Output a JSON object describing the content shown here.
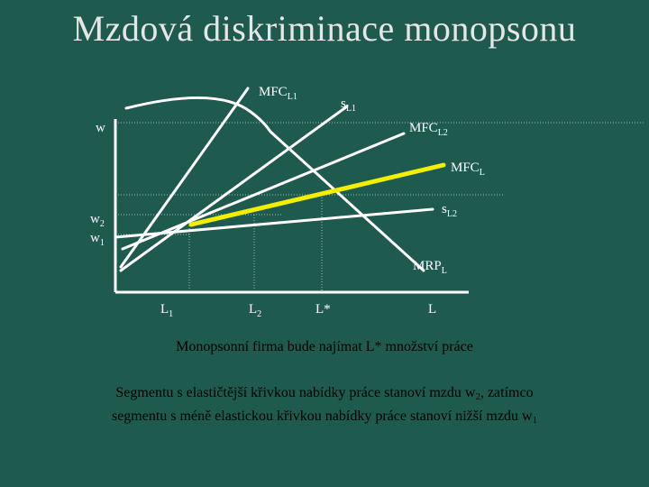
{
  "title": "Mzdová diskriminace monopsonu",
  "colors": {
    "background": "#1f5a4f",
    "curves": "#ffffff",
    "highlight": "#f2ef00",
    "text": "#000000"
  },
  "diagram": {
    "y_axis_labels": {
      "w": "w",
      "w2_main": "w",
      "w2_sub": "2",
      "w1_main": "w",
      "w1_sub": "1"
    },
    "x_axis_labels": {
      "L1_main": "L",
      "L1_sub": "1",
      "L2_main": "L",
      "L2_sub": "2",
      "Lstar": "L*",
      "L": "L"
    },
    "curve_labels": {
      "MFC_L1_main": "MFC",
      "MFC_L1_sub": "L1",
      "s_L1_main": "s",
      "s_L1_sub": "L1",
      "MFC_L2_main": "MFC",
      "MFC_L2_sub": "L2",
      "MFC_L_main": "MFC",
      "MFC_L_sub": "L",
      "s_L2_main": "s",
      "s_L2_sub": "L2",
      "MRP_L_main": "MRP",
      "MRP_L_sub": "L"
    }
  },
  "captions": {
    "line1": "Monopsonní firma bude najímat L* množství práce",
    "line2_a": "Segmentu s elastičtější křivkou nabídky práce stanoví mzdu w",
    "line2_sub": "2",
    "line2_b": ", zatímco",
    "line3_a": "segmentu s méně elastickou křivkou nabídky práce stanoví nižší mzdu w",
    "line3_sub": "1"
  }
}
